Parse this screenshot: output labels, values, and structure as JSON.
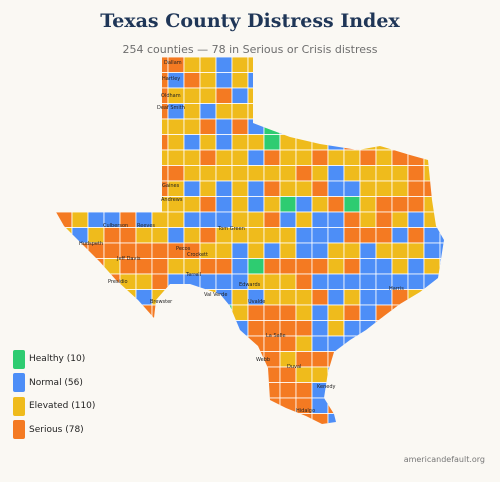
{
  "title": "Texas County Distress Index",
  "subtitle": "254 counties — 78 in Serious or Crisis distress",
  "source": "americandefault.org",
  "colors": {
    "healthy": "#2ecc71",
    "normal": "#4d8ef7",
    "elevated": "#efbb1c",
    "serious": "#f47a22",
    "border": "#ffffff"
  },
  "legend": [
    {
      "key": "healthy",
      "label": "Healthy (10)"
    },
    {
      "key": "normal",
      "label": "Normal (56)"
    },
    {
      "key": "elevated",
      "label": "Elevated (110)"
    },
    {
      "key": "serious",
      "label": "Serious (78)"
    }
  ],
  "county_labels": [
    "Dallam",
    "Hartley",
    "Oldham",
    "Deaf Smith",
    "Gaines",
    "Andrews",
    "Culberson",
    "Reeves",
    "Tom Green",
    "Hudspeth",
    "Jeff Davis",
    "Pecos",
    "Crockett",
    "Terrell",
    "Presidio",
    "Edwards",
    "Val Verde",
    "Uvalde",
    "Brewster",
    "La Salle",
    "Harris",
    "Webb",
    "Duval",
    "Kenedy",
    "Hidalgo"
  ]
}
